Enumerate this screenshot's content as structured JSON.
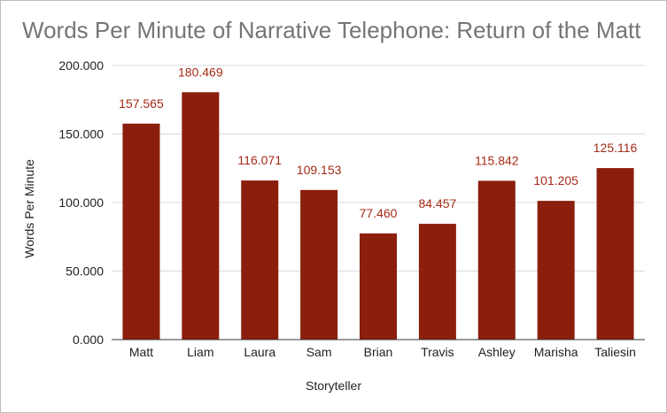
{
  "chart_data": {
    "type": "bar",
    "title": "Words Per Minute of Narrative Telephone: Return of the Matt",
    "xlabel": "Storyteller",
    "ylabel": "Words Per Minute",
    "categories": [
      "Matt",
      "Liam",
      "Laura",
      "Sam",
      "Brian",
      "Travis",
      "Ashley",
      "Marisha",
      "Taliesin"
    ],
    "values": [
      157.565,
      180.469,
      116.071,
      109.153,
      77.46,
      84.457,
      115.842,
      101.205,
      125.116
    ],
    "value_labels": [
      "157.565",
      "180.469",
      "116.071",
      "109.153",
      "77.460",
      "84.457",
      "115.842",
      "101.205",
      "125.116"
    ],
    "ylim": [
      0,
      200
    ],
    "yticks": [
      0,
      50,
      100,
      150,
      200
    ],
    "ytick_labels": [
      "0.000",
      "50.000",
      "100.000",
      "150.000",
      "200.000"
    ],
    "grid": true,
    "legend": "none",
    "colors": {
      "bar": "#8b1e0c",
      "data_label": "#a52a16",
      "title": "#757575",
      "axis_text": "#222222",
      "gridline": "#d9d9d9",
      "baseline": "#333333"
    }
  }
}
